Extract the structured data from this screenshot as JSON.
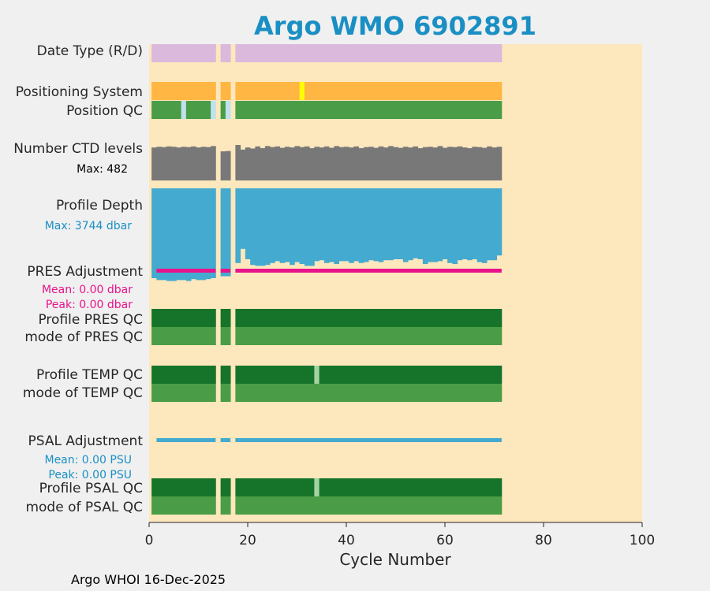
{
  "chart_data": {
    "type": "table",
    "title": "Argo WMO 6902891",
    "xlabel": "Cycle Number",
    "xlim": [
      0,
      100
    ],
    "xticks": [
      0,
      20,
      40,
      60,
      80,
      100
    ],
    "last_cycle": 71,
    "missing_cycles": [
      14,
      17
    ],
    "footer": "Argo WHOI 16-Dec-2025",
    "rows": {
      "date_type": "Date Type (R/D)",
      "positioning": "Positioning System",
      "position_qc": "Position QC",
      "ctd_levels": "Number CTD levels",
      "ctd_max": "Max: 482",
      "profile_depth": "Profile Depth",
      "depth_max": "Max: 3744 dbar",
      "pres_adj": "PRES Adjustment",
      "pres_mean": "Mean: 0.00 dbar",
      "pres_peak": "Peak: 0.00 dbar",
      "profile_pres_qc": "Profile PRES QC",
      "mode_pres_qc": "mode of PRES QC",
      "profile_temp_qc": "Profile TEMP QC",
      "mode_temp_qc": "mode of TEMP QC",
      "psal_adj": "PSAL Adjustment",
      "psal_mean": "Mean: 0.00 PSU",
      "psal_peak": "Peak: 0.00 PSU",
      "profile_psal_qc": "Profile PSAL QC",
      "mode_psal_qc": "mode of PSAL QC"
    },
    "special_cycles": {
      "positioning_alt": [
        31
      ],
      "position_qc_flag": [
        7,
        13,
        16
      ],
      "temp_qc_flag": [
        34
      ],
      "psal_qc_flag": [
        34
      ]
    },
    "depth_fraction_of_max": [
      0.95,
      0.97,
      0.97,
      0.98,
      0.98,
      0.97,
      0.97,
      0.98,
      0.96,
      0.97,
      0.97,
      0.96,
      0.95,
      0,
      0.93,
      0.93,
      0,
      0.79,
      0.64,
      0.75,
      0.81,
      0.82,
      0.82,
      0.81,
      0.79,
      0.77,
      0.79,
      0.78,
      0.81,
      0.78,
      0.8,
      0.82,
      0.82,
      0.77,
      0.76,
      0.79,
      0.78,
      0.8,
      0.77,
      0.77,
      0.79,
      0.77,
      0.79,
      0.78,
      0.76,
      0.77,
      0.78,
      0.76,
      0.76,
      0.75,
      0.75,
      0.78,
      0.76,
      0.74,
      0.75,
      0.8,
      0.78,
      0.78,
      0.77,
      0.75,
      0.79,
      0.8,
      0.76,
      0.75,
      0.76,
      0.75,
      0.78,
      0.79,
      0.76,
      0.76,
      0.71
    ],
    "ctd_fraction_of_max": [
      0.93,
      0.95,
      0.94,
      0.96,
      0.95,
      0.93,
      0.95,
      0.94,
      0.96,
      0.93,
      0.95,
      0.94,
      0.97,
      0,
      0.82,
      0.83,
      0,
      1.0,
      0.87,
      0.93,
      0.9,
      0.96,
      0.91,
      0.97,
      0.94,
      0.96,
      0.92,
      0.95,
      0.93,
      0.97,
      0.94,
      0.96,
      0.91,
      0.95,
      0.93,
      0.96,
      0.92,
      0.97,
      0.94,
      0.95,
      0.93,
      0.96,
      0.91,
      0.94,
      0.95,
      0.92,
      0.96,
      0.93,
      0.97,
      0.94,
      0.92,
      0.95,
      0.93,
      0.96,
      0.91,
      0.94,
      0.95,
      0.93,
      0.97,
      0.92,
      0.95,
      0.94,
      0.96,
      0.93,
      0.91,
      0.95,
      0.94,
      0.92,
      0.96,
      0.93,
      0.95
    ],
    "colors": {
      "title": "#1a8fc4",
      "background": "#fde7bd",
      "date_type": "#dbb9dc",
      "positioning": "#ffb643",
      "positioning_alt": "#ffff00",
      "qc_good": "#4a9d46",
      "qc_flag": "#c0e1ee",
      "qc_profile": "#16742a",
      "qc_light": "#a4d3a2",
      "ctd": "#787878",
      "depth": "#44aad0",
      "pres_adj": "#e8138b",
      "psal_adj": "#44aad0",
      "text": "#262626"
    }
  }
}
